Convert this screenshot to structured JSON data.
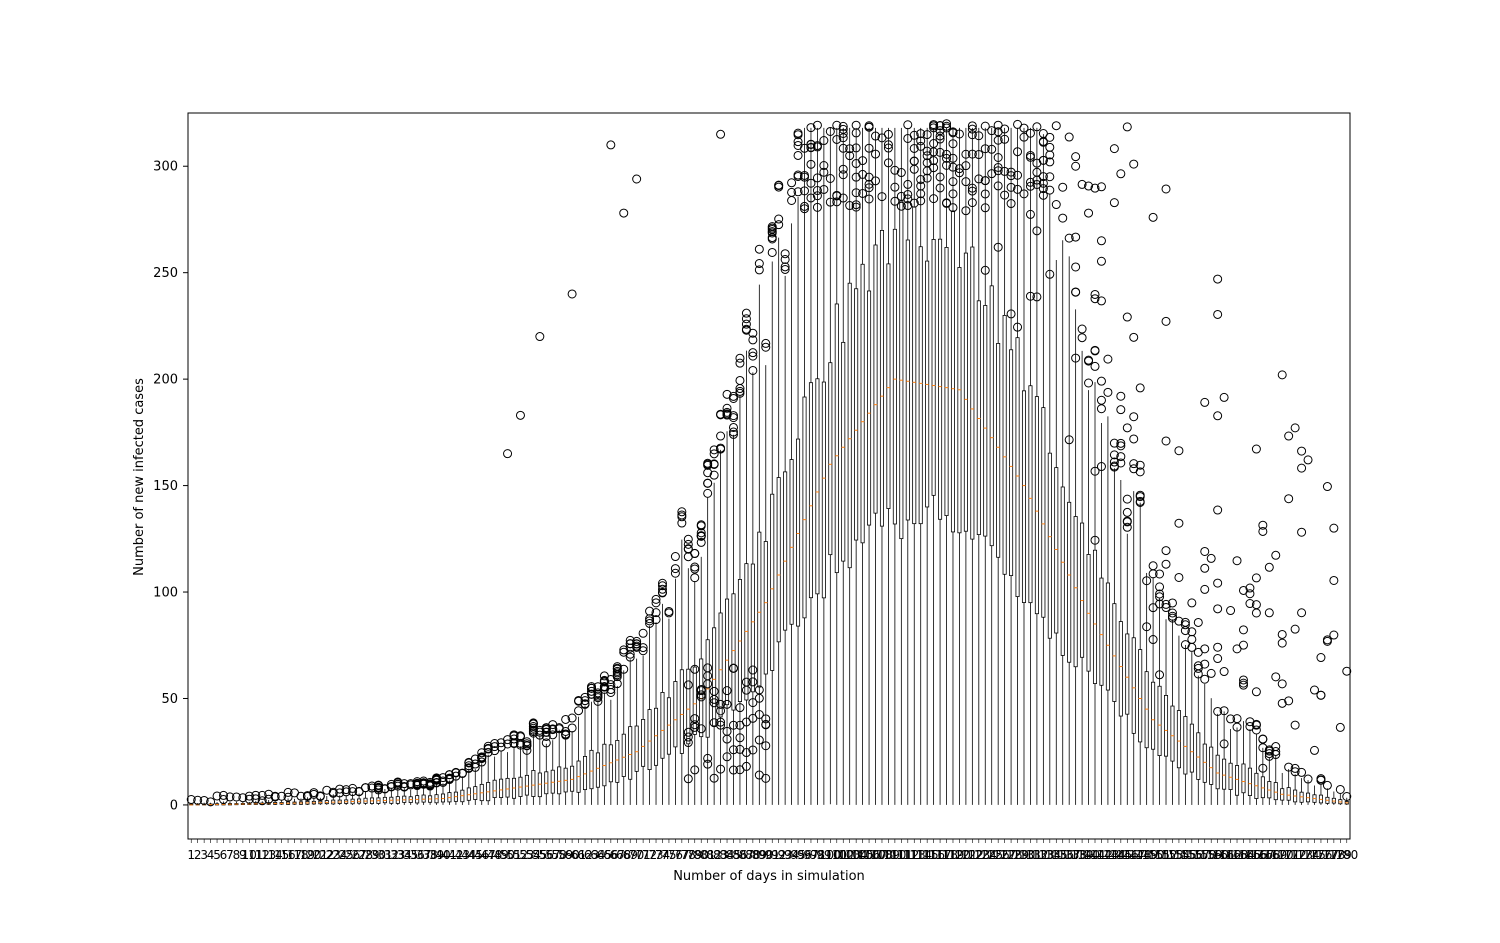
{
  "chart_data": {
    "type": "boxplot",
    "title": "",
    "xlabel": "Number of days in simulation",
    "ylabel": "Number of new infected cases",
    "days": 180,
    "ylim": [
      -16,
      325
    ],
    "yticks": [
      0,
      50,
      100,
      150,
      200,
      250,
      300
    ],
    "median_color": "#ff7f0e",
    "box_color": "#000000",
    "grid": false,
    "legend": "none",
    "median_curve": {
      "day": [
        1,
        20,
        40,
        60,
        70,
        80,
        90,
        100,
        110,
        120,
        130,
        140,
        150,
        160,
        170,
        180
      ],
      "value": [
        0,
        1,
        3,
        12,
        25,
        50,
        95,
        160,
        200,
        195,
        150,
        90,
        40,
        15,
        5,
        1
      ]
    },
    "outliers": [
      {
        "day": 66,
        "value": 310
      },
      {
        "day": 68,
        "value": 278
      },
      {
        "day": 70,
        "value": 294
      },
      {
        "day": 83,
        "value": 315
      },
      {
        "day": 133,
        "value": 292
      },
      {
        "day": 147,
        "value": 301
      },
      {
        "day": 50,
        "value": 165
      },
      {
        "day": 52,
        "value": 183
      },
      {
        "day": 55,
        "value": 220
      },
      {
        "day": 60,
        "value": 240
      },
      {
        "day": 140,
        "value": 278
      },
      {
        "day": 150,
        "value": 276
      },
      {
        "day": 160,
        "value": 247
      },
      {
        "day": 170,
        "value": 202
      },
      {
        "day": 178,
        "value": 130
      }
    ]
  }
}
